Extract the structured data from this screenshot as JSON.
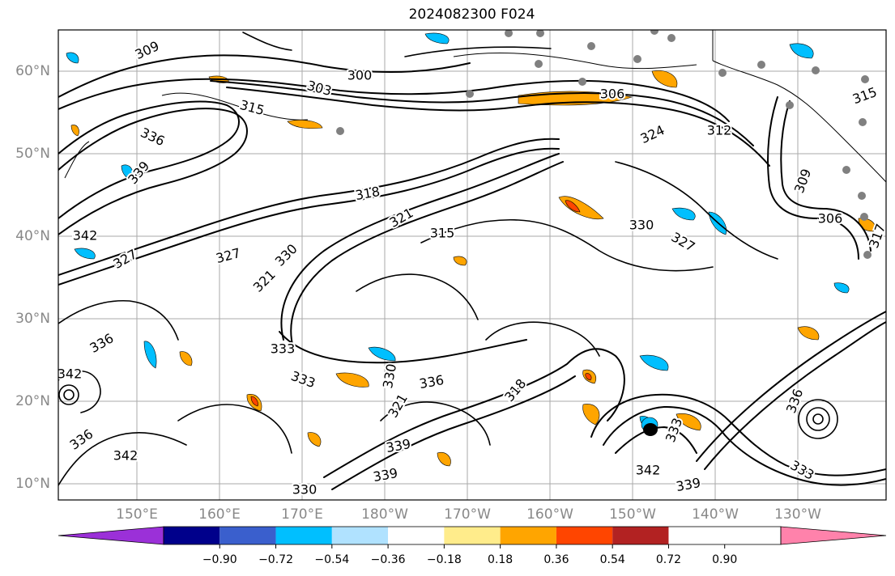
{
  "title": "2024082300 F024",
  "lat_labels": [
    "60°N",
    "50°N",
    "40°N",
    "30°N",
    "20°N",
    "10°N"
  ],
  "lat_values": [
    60,
    50,
    40,
    30,
    20,
    10
  ],
  "lon_labels": [
    "150°E",
    "160°E",
    "170°E",
    "180°W",
    "170°W",
    "160°W",
    "150°W",
    "140°W",
    "130°W"
  ],
  "lon_values": [
    150,
    160,
    170,
    180,
    190,
    200,
    210,
    220,
    230
  ],
  "contour_labels": [
    "309",
    "300",
    "303",
    "306",
    "315",
    "312",
    "324",
    "336",
    "339",
    "318",
    "321",
    "315",
    "330",
    "327",
    "342",
    "327",
    "321",
    "330",
    "327",
    "336",
    "333",
    "330",
    "333",
    "336",
    "318",
    "321",
    "342",
    "336",
    "339",
    "342",
    "339",
    "330",
    "339",
    "342",
    "333",
    "336",
    "333",
    "306",
    "315",
    "309",
    "317"
  ],
  "colorbar": {
    "tick_labels": [
      "−0.90",
      "−0.72",
      "−0.54",
      "−0.36",
      "−0.18",
      "0.18",
      "0.36",
      "0.54",
      "0.72",
      "0.90"
    ],
    "colors": [
      "#9b30d8",
      "#00008b",
      "#3a5fcd",
      "#00bfff",
      "#b0e2ff",
      "#ffffff",
      "#ffec8b",
      "#ffa500",
      "#ff4500",
      "#b22222",
      "#ff82ab"
    ]
  }
}
